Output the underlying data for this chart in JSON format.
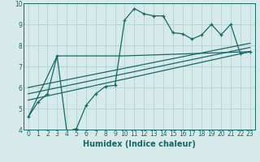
{
  "title": "",
  "xlabel": "Humidex (Indice chaleur)",
  "bg_color": "#d6eaea",
  "grid_color": "#b8d4d4",
  "line_color": "#1a6666",
  "xlim": [
    -0.5,
    23.5
  ],
  "ylim": [
    4,
    10
  ],
  "xticks": [
    0,
    1,
    2,
    3,
    4,
    5,
    6,
    7,
    8,
    9,
    10,
    11,
    12,
    13,
    14,
    15,
    16,
    17,
    18,
    19,
    20,
    21,
    22,
    23
  ],
  "yticks": [
    4,
    5,
    6,
    7,
    8,
    9,
    10
  ],
  "series": [
    {
      "x": [
        0,
        1,
        2,
        3,
        4,
        5,
        6,
        7,
        8,
        9,
        10,
        11,
        12,
        13,
        14,
        15,
        16,
        17,
        18,
        19,
        20,
        21,
        22,
        23
      ],
      "y": [
        4.6,
        5.3,
        5.7,
        7.5,
        3.9,
        4.05,
        5.15,
        5.7,
        6.05,
        6.1,
        9.2,
        9.75,
        9.5,
        9.4,
        9.4,
        8.6,
        8.55,
        8.3,
        8.5,
        9.0,
        8.5,
        9.0,
        7.6,
        7.7
      ],
      "has_markers": true
    },
    {
      "x": [
        0,
        3,
        4,
        10,
        23
      ],
      "y": [
        4.6,
        7.5,
        7.5,
        7.5,
        7.7
      ],
      "has_markers": false
    },
    {
      "x": [
        0,
        23
      ],
      "y": [
        6.0,
        8.1
      ],
      "has_markers": false
    },
    {
      "x": [
        0,
        23
      ],
      "y": [
        5.7,
        7.9
      ],
      "has_markers": false
    },
    {
      "x": [
        0,
        23
      ],
      "y": [
        5.4,
        7.7
      ],
      "has_markers": false
    }
  ]
}
